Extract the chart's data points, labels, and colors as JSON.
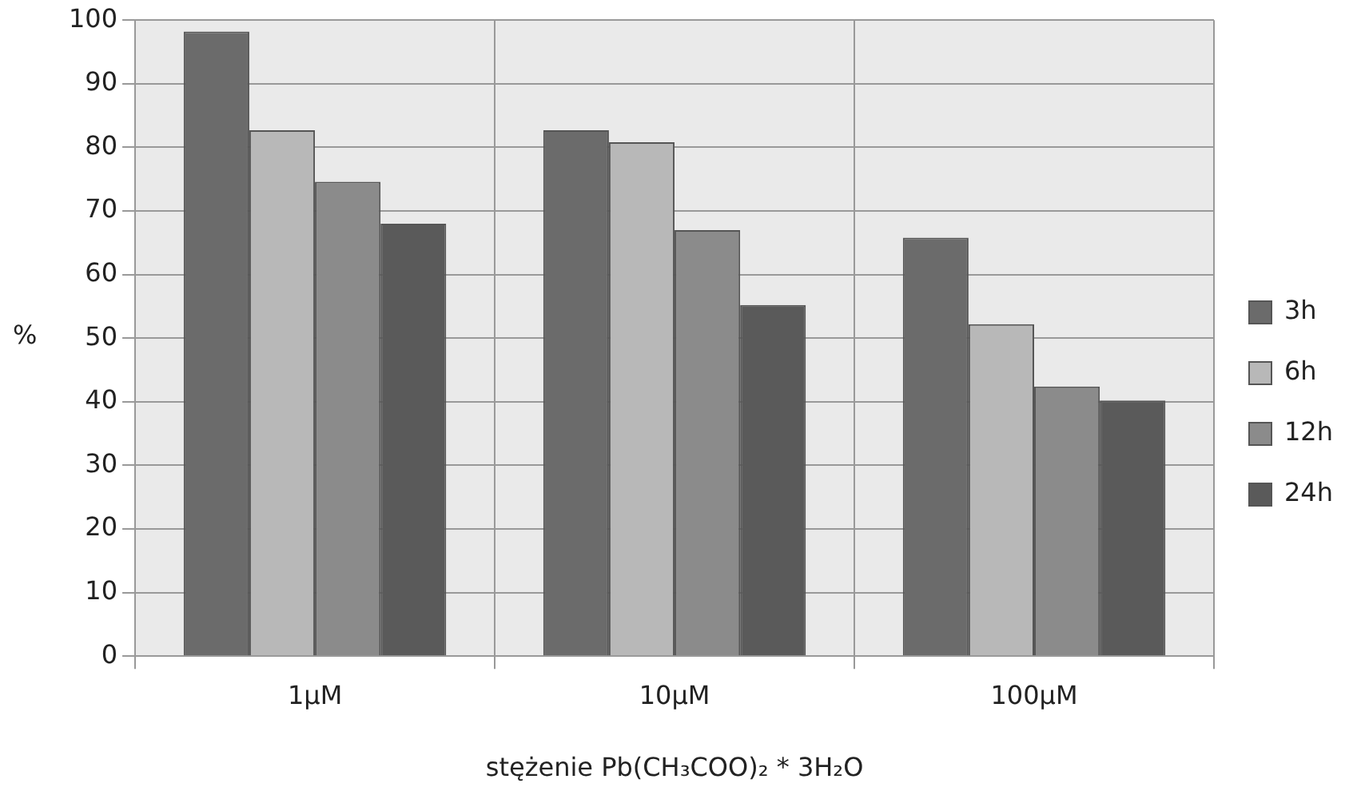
{
  "chart_data": {
    "type": "bar",
    "xlabel": "stężenie Pb(CH₃COO)₂ * 3H₂O",
    "ylabel": "%",
    "categories": [
      "1µM",
      "10µM",
      "100µM"
    ],
    "series": [
      {
        "name": "3h",
        "color": "#6b6b6b",
        "values": [
          98.2,
          82.7,
          65.8
        ]
      },
      {
        "name": "6h",
        "color": "#b8b8b8",
        "values": [
          82.7,
          80.8,
          52.2
        ]
      },
      {
        "name": "12h",
        "color": "#8b8b8b",
        "values": [
          74.6,
          67,
          42.4
        ]
      },
      {
        "name": "24h",
        "color": "#5a5a5a",
        "values": [
          68,
          55.2,
          40.2
        ]
      }
    ],
    "ylim": [
      0,
      100
    ],
    "yticks": [
      0,
      10,
      20,
      30,
      40,
      50,
      60,
      70,
      80,
      90,
      100
    ],
    "grid": true,
    "legend": "right"
  }
}
